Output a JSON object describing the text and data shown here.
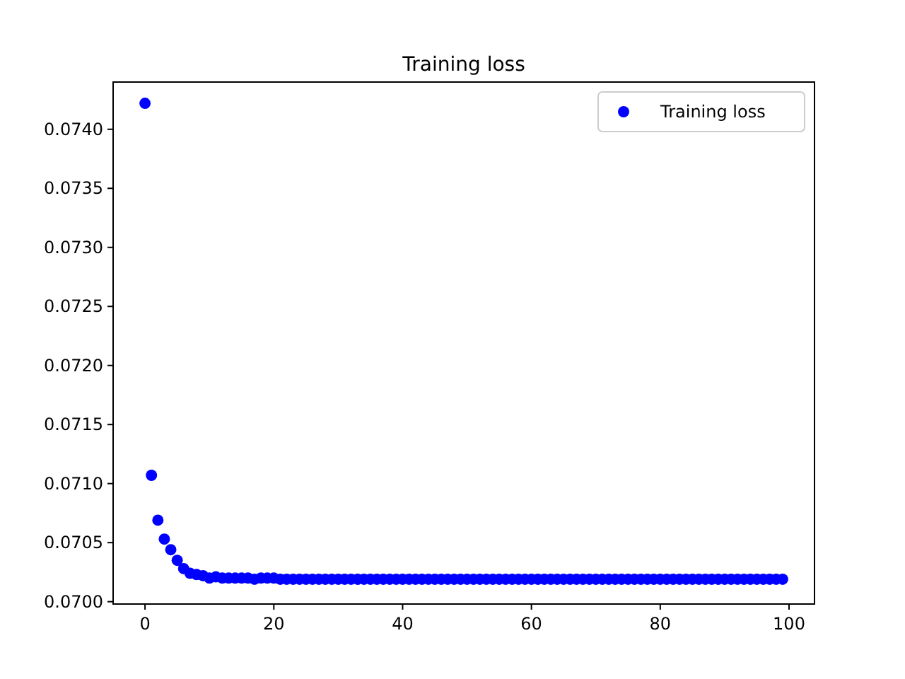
{
  "chart_data": {
    "type": "scatter",
    "title": "Training loss",
    "x": [
      0,
      1,
      2,
      3,
      4,
      5,
      6,
      7,
      8,
      9,
      10,
      11,
      12,
      13,
      14,
      15,
      16,
      17,
      18,
      19,
      20,
      21,
      22,
      23,
      24,
      25,
      26,
      27,
      28,
      29,
      30,
      31,
      32,
      33,
      34,
      35,
      36,
      37,
      38,
      39,
      40,
      41,
      42,
      43,
      44,
      45,
      46,
      47,
      48,
      49,
      50,
      51,
      52,
      53,
      54,
      55,
      56,
      57,
      58,
      59,
      60,
      61,
      62,
      63,
      64,
      65,
      66,
      67,
      68,
      69,
      70,
      71,
      72,
      73,
      74,
      75,
      76,
      77,
      78,
      79,
      80,
      81,
      82,
      83,
      84,
      85,
      86,
      87,
      88,
      89,
      90,
      91,
      92,
      93,
      94,
      95,
      96,
      97,
      98,
      99
    ],
    "series": [
      {
        "name": "Training loss",
        "color": "#0000ff",
        "values": [
          0.07422,
          0.07107,
          0.07069,
          0.07053,
          0.07044,
          0.07035,
          0.07028,
          0.07024,
          0.07023,
          0.07022,
          0.0702,
          0.07021,
          0.0702,
          0.0702,
          0.0702,
          0.0702,
          0.0702,
          0.07019,
          0.0702,
          0.0702,
          0.0702,
          0.07019,
          0.07019,
          0.07019,
          0.07019,
          0.07019,
          0.07019,
          0.07019,
          0.07019,
          0.07019,
          0.07019,
          0.07019,
          0.07019,
          0.07019,
          0.07019,
          0.07019,
          0.07019,
          0.07019,
          0.07019,
          0.07019,
          0.07019,
          0.07019,
          0.07019,
          0.07019,
          0.07019,
          0.07019,
          0.07019,
          0.07019,
          0.07019,
          0.07019,
          0.07019,
          0.07019,
          0.07019,
          0.07019,
          0.07019,
          0.07019,
          0.07019,
          0.07019,
          0.07019,
          0.07019,
          0.07019,
          0.07019,
          0.07019,
          0.07019,
          0.07019,
          0.07019,
          0.07019,
          0.07019,
          0.07019,
          0.07019,
          0.07019,
          0.07019,
          0.07019,
          0.07019,
          0.07019,
          0.07019,
          0.07019,
          0.07019,
          0.07019,
          0.07019,
          0.07019,
          0.07019,
          0.07019,
          0.07019,
          0.07019,
          0.07019,
          0.07019,
          0.07019,
          0.07019,
          0.07019,
          0.07019,
          0.07019,
          0.07019,
          0.07019,
          0.07019,
          0.07019,
          0.07019,
          0.07019,
          0.07019,
          0.07019
        ]
      }
    ],
    "xlim": [
      -4.95,
      103.95
    ],
    "xticks": [
      0,
      20,
      40,
      60,
      80,
      100
    ],
    "ylim": [
      0.06998,
      0.0744
    ],
    "yticks": [
      {
        "value": 0.07,
        "label": "0.0700"
      },
      {
        "value": 0.0705,
        "label": "0.0705"
      },
      {
        "value": 0.071,
        "label": "0.0710"
      },
      {
        "value": 0.0715,
        "label": "0.0715"
      },
      {
        "value": 0.072,
        "label": "0.0720"
      },
      {
        "value": 0.0725,
        "label": "0.0725"
      },
      {
        "value": 0.073,
        "label": "0.0730"
      },
      {
        "value": 0.0735,
        "label": "0.0735"
      },
      {
        "value": 0.074,
        "label": "0.0740"
      }
    ],
    "legend": "top right",
    "marker": "circle",
    "grid": false
  }
}
